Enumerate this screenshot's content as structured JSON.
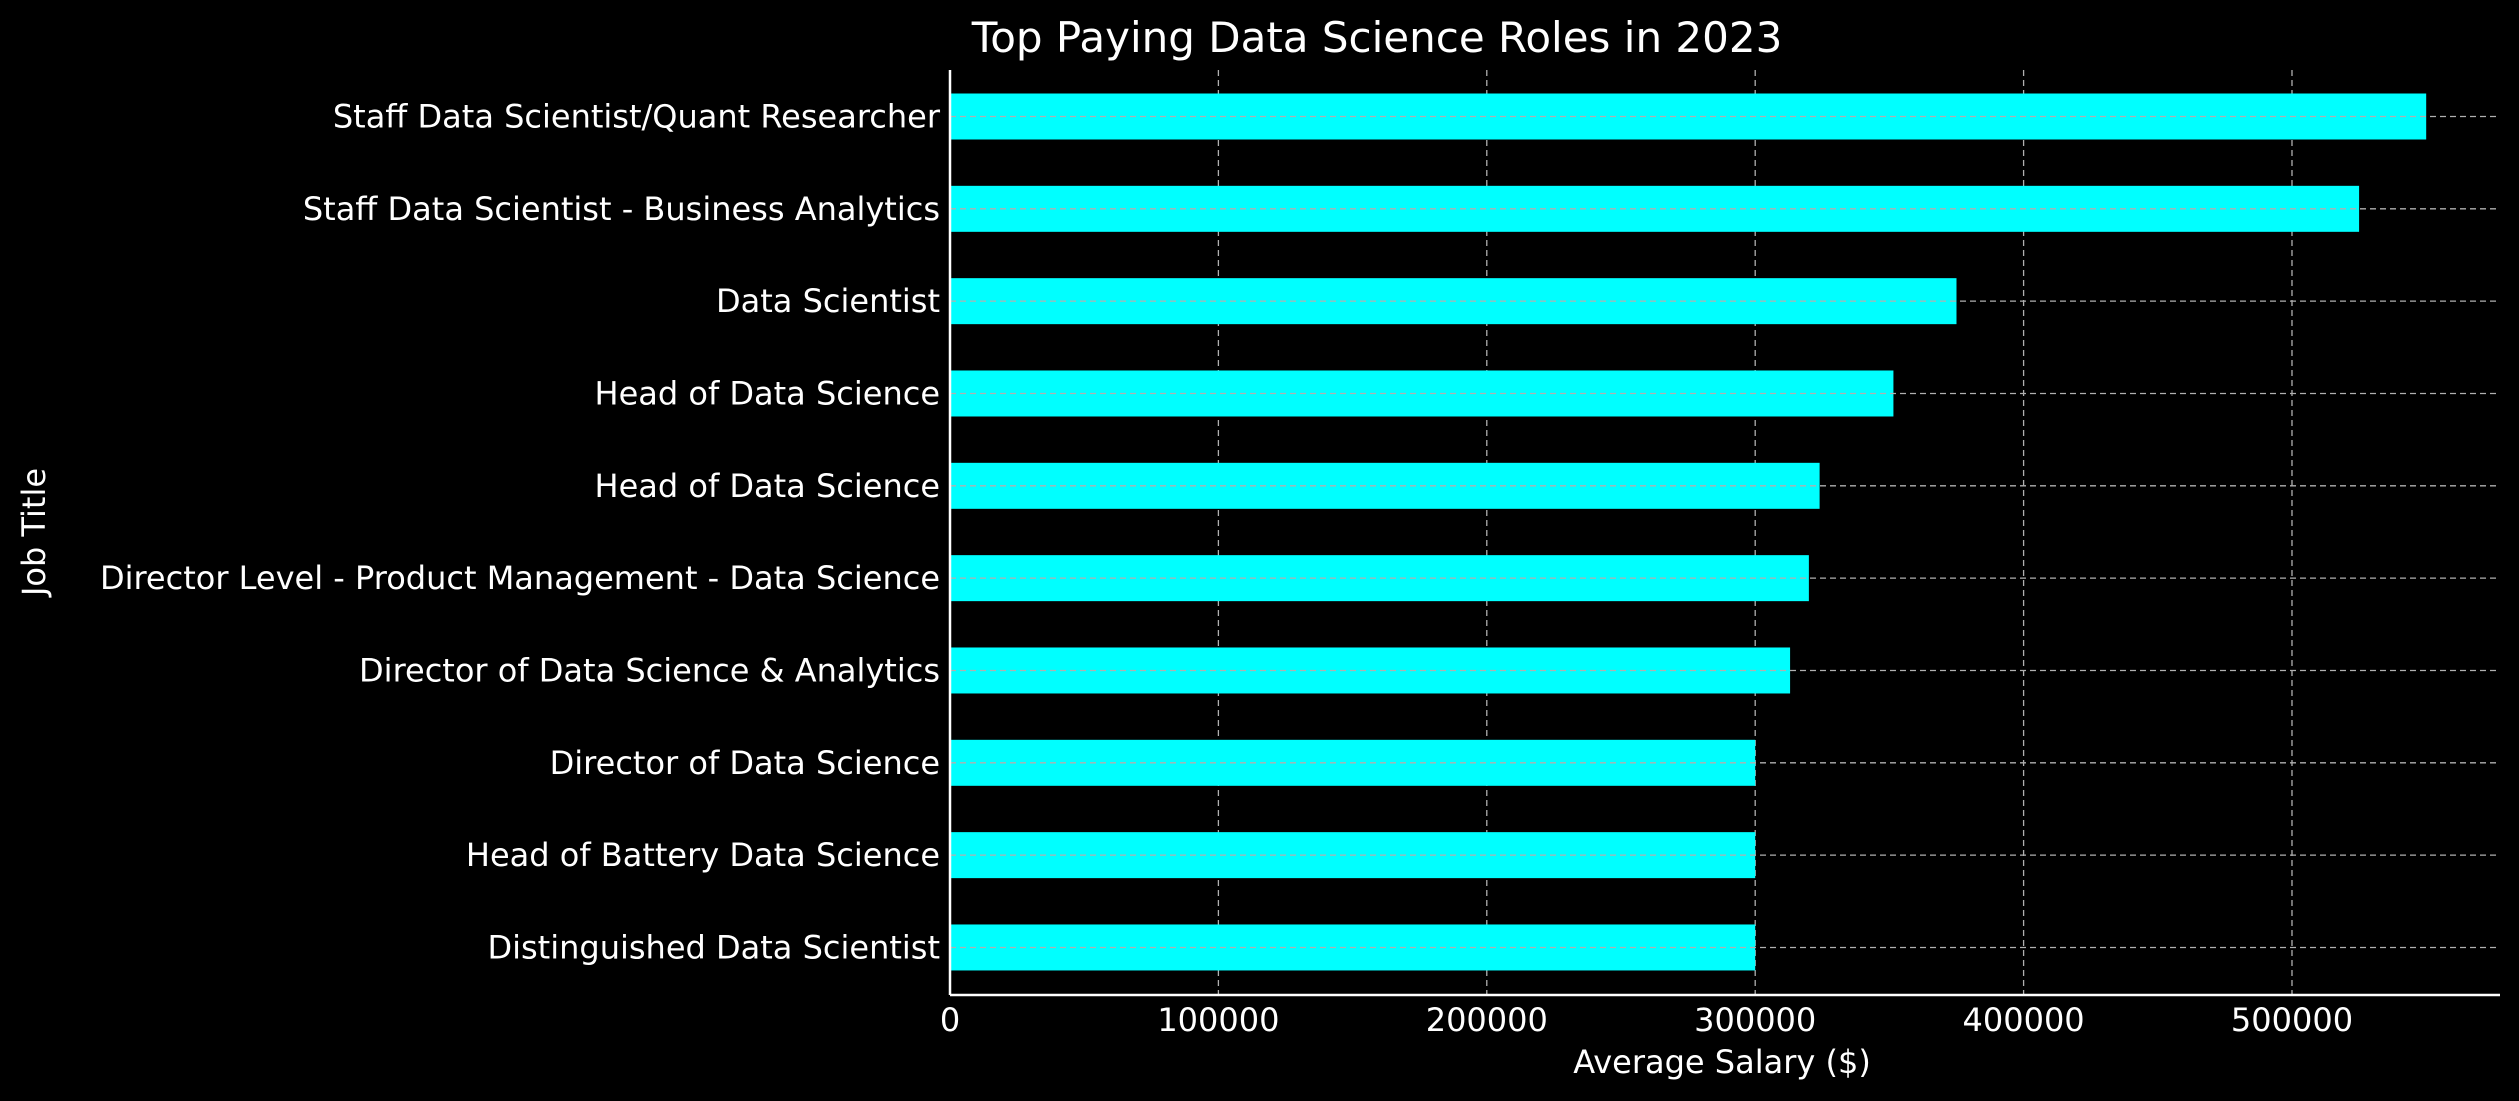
{
  "colors": {
    "background": "#000000",
    "bar": "#00ffff",
    "text": "#ffffff",
    "grid": "#b0b0b0",
    "axis": "#ffffff"
  },
  "chart_data": {
    "type": "bar",
    "orientation": "horizontal",
    "title": "Top Paying Data Science Roles in 2023",
    "xlabel": "Average Salary ($)",
    "ylabel": "Job Title",
    "categories": [
      "Staff Data Scientist/Quant Researcher",
      "Staff Data Scientist - Business Analytics",
      "Data Scientist",
      "Head of Data Science",
      "Head of Data Science",
      "Director Level - Product Management - Data Science",
      "Director of Data Science & Analytics",
      "Director of Data Science",
      "Head of Battery Data Science",
      "Distinguished Data Scientist"
    ],
    "values": [
      550000,
      525000,
      375000,
      351500,
      324000,
      320000,
      313000,
      300000,
      300000,
      300000
    ],
    "xlim": [
      0,
      577500
    ],
    "xticks": [
      0,
      100000,
      200000,
      300000,
      400000,
      500000
    ],
    "xtick_labels": [
      "0",
      "100000",
      "200000",
      "300000",
      "400000",
      "500000"
    ],
    "grid": "dashed, both axes",
    "legend": "none"
  }
}
